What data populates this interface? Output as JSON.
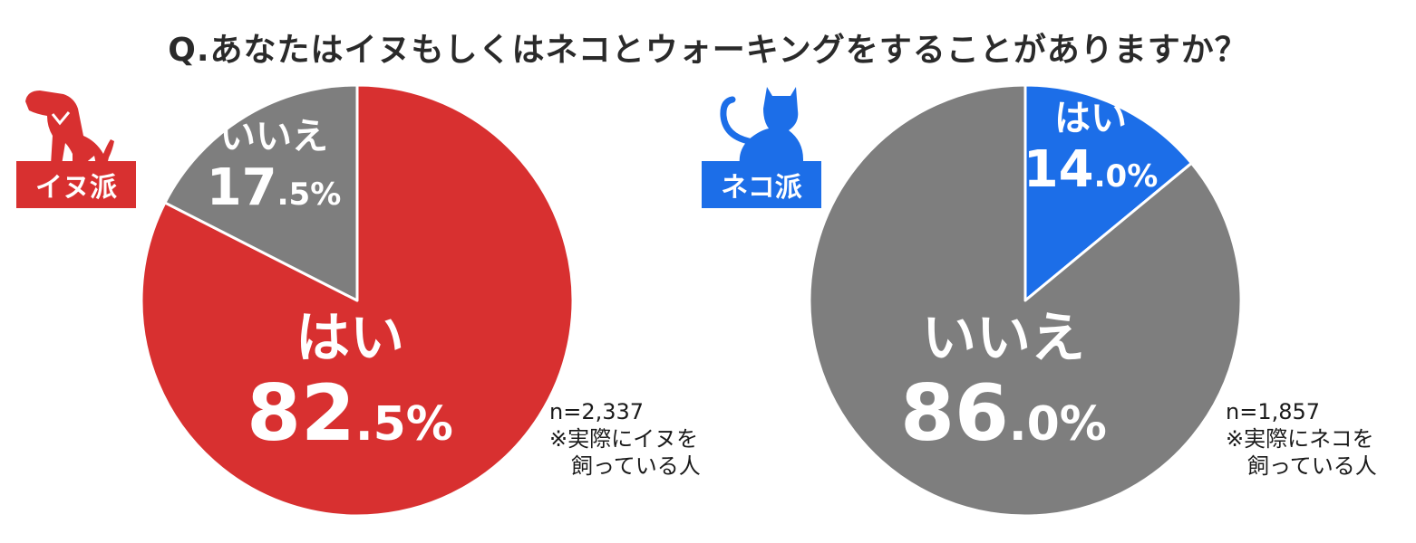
{
  "title": "Q.あなたはイヌもしくはネコとウォーキングをすることがありますか？",
  "colors": {
    "red": "#d83030",
    "blue": "#1c6ee8",
    "gray": "#7e7e7e"
  },
  "chart_data": [
    {
      "type": "pie",
      "group_label": "イヌ派",
      "icon": "dog-icon",
      "slices": [
        {
          "label": "はい",
          "value": 82.5,
          "value_int": "82",
          "value_dec": ".5%",
          "color": "#d83030"
        },
        {
          "label": "いいえ",
          "value": 17.5,
          "value_int": "17",
          "value_dec": ".5%",
          "color": "#7e7e7e"
        }
      ],
      "n": "n=2,337",
      "note_line1": "※実際にイヌを",
      "note_line2": "飼っている人"
    },
    {
      "type": "pie",
      "group_label": "ネコ派",
      "icon": "cat-icon",
      "slices": [
        {
          "label": "はい",
          "value": 14.0,
          "value_int": "14",
          "value_dec": ".0%",
          "color": "#1c6ee8"
        },
        {
          "label": "いいえ",
          "value": 86.0,
          "value_int": "86",
          "value_dec": ".0%",
          "color": "#7e7e7e"
        }
      ],
      "n": "n=1,857",
      "note_line1": "※実際にネコを",
      "note_line2": "飼っている人"
    }
  ]
}
